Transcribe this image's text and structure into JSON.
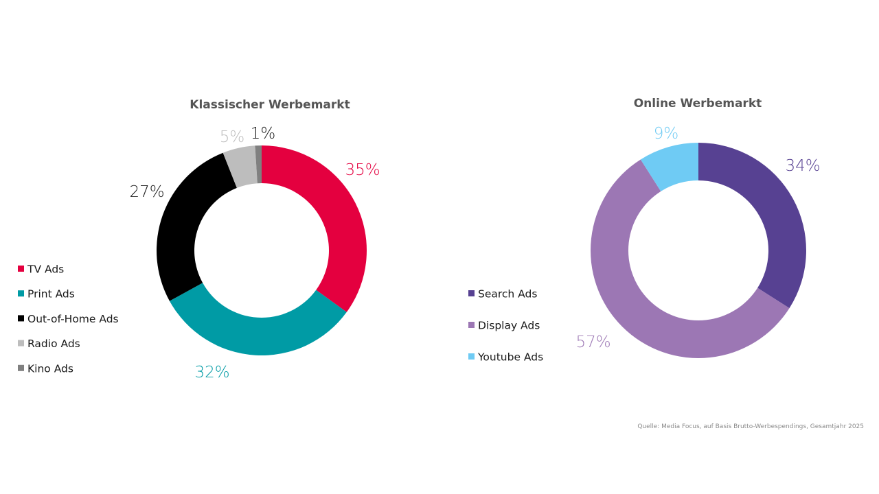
{
  "chart_data": [
    {
      "type": "pie",
      "style": "donut",
      "title": "Klassischer Werbemarkt",
      "legend_placement": "left",
      "slices": [
        {
          "name": "TV Ads",
          "value": 35,
          "label": "35%",
          "color": "#E4003F"
        },
        {
          "name": "Print Ads",
          "value": 32,
          "label": "32%",
          "color": "#009BA5"
        },
        {
          "name": "Out-of-Home Ads",
          "value": 27,
          "label": "27%",
          "color": "#000000"
        },
        {
          "name": "Radio Ads",
          "value": 5,
          "label": "5%",
          "color": "#BDBDBD"
        },
        {
          "name": "Kino Ads",
          "value": 1,
          "label": "1%",
          "color": "#808080"
        }
      ],
      "label_colors": [
        "#E4003F",
        "#009BA5",
        "#1a1a1a",
        "#BDBDBD",
        "#1a1a1a"
      ]
    },
    {
      "type": "pie",
      "style": "donut",
      "title": "Online Werbemarkt",
      "legend_placement": "left",
      "slices": [
        {
          "name": "Search Ads",
          "value": 34,
          "label": "34%",
          "color": "#574192"
        },
        {
          "name": "Display Ads",
          "value": 57,
          "label": "57%",
          "color": "#9C77B4"
        },
        {
          "name": "Youtube Ads",
          "value": 9,
          "label": "9%",
          "color": "#6FCBF4"
        }
      ],
      "label_colors": [
        "#574192",
        "#9C77B4",
        "#6FCBF4"
      ]
    }
  ],
  "source": "Quelle: Media Focus, auf Basis Brutto-Werbespendings, Gesamtjahr 2025"
}
